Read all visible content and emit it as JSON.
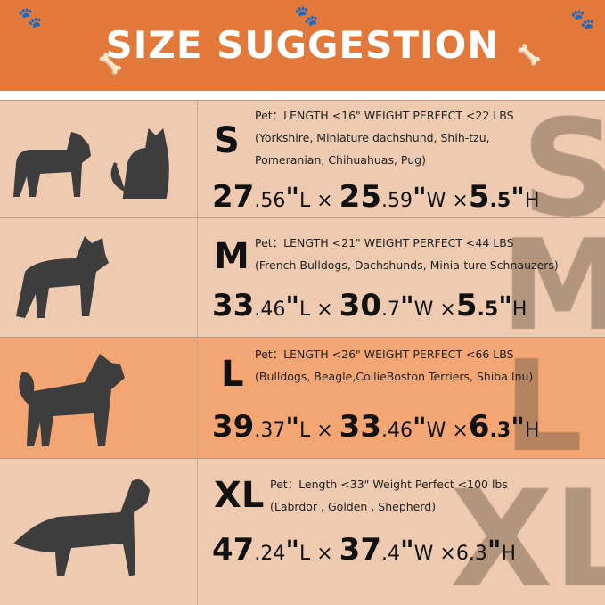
{
  "header": {
    "title": "SIZE SUGGESTION"
  },
  "colors": {
    "header": "#E2783A",
    "row": "#EECBB0",
    "highlight_row": "#F3A673",
    "silhouette": "#3d3d3d"
  },
  "rows": [
    {
      "size": "S",
      "info": [
        "Pet：LENGTH <16\"  WEIGHT PERFECT <22 LBS",
        "(Yorkshire, Miniature dachshund, Shih-tzu,",
        "Pomeranian, Chihuahuas, Pug)"
      ],
      "dims": {
        "l_int": "27",
        "l_dec": ".56",
        "w_int": "25",
        "w_dec": ".59",
        "h_int": "5",
        "h_dec": ".5"
      },
      "pets": [
        "terrier-icon",
        "cat-icon"
      ]
    },
    {
      "size": "M",
      "info": [
        "Pet：LENGTH <21\"  WEIGHT PERFECT <44 LBS",
        "(French Bulldogs, Dachshunds, Minia-ture Schnauzers)"
      ],
      "dims": {
        "l_int": "33",
        "l_dec": ".46",
        "w_int": "30",
        "w_dec": ".7",
        "h_int": "5",
        "h_dec": ".5"
      },
      "pets": [
        "bulldog-icon"
      ]
    },
    {
      "size": "L",
      "info": [
        "Pet：LENGTH <26\" WEIGHT PERFECT <66 LBS",
        "(Bulldogs, Beagle,CollieBoston Terriers, Shiba Inu)"
      ],
      "dims": {
        "l_int": "39",
        "l_dec": ".37",
        "w_int": "33",
        "w_dec": ".46",
        "h_int": "6",
        "h_dec": ".3"
      },
      "pets": [
        "shiba-icon"
      ]
    },
    {
      "size": "XL",
      "info": [
        "Pet：Length <33\"  Weight Perfect <100 lbs",
        "(Labrdor , Golden , Shepherd)"
      ],
      "dims": {
        "l_int": "47",
        "l_dec": ".24",
        "w_int": "37",
        "w_dec": ".4",
        "h_int": "",
        "h_dec": "6.3"
      },
      "pets": [
        "golden-retriever-icon"
      ]
    }
  ],
  "units": {
    "l": "L",
    "w": "W",
    "h": "H",
    "inch": "\"",
    "times": "×"
  }
}
